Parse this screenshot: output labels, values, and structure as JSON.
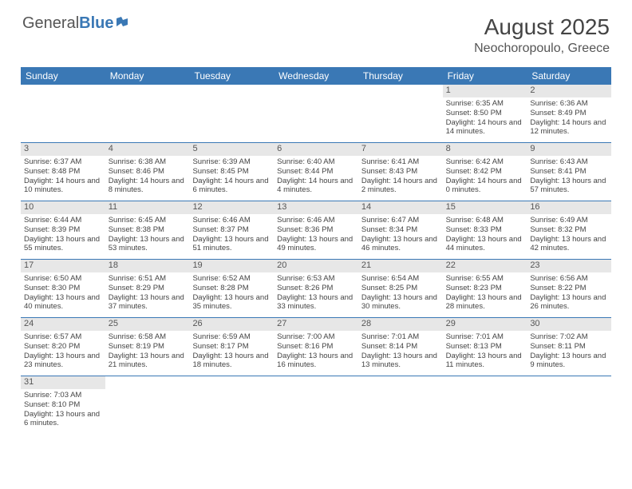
{
  "logo": {
    "general": "General",
    "blue": "Blue"
  },
  "title": "August 2025",
  "location": "Neochoropoulo, Greece",
  "colors": {
    "header_bg": "#3a78b5",
    "header_text": "#ffffff",
    "daynum_bg": "#e7e7e7",
    "text": "#444444",
    "border": "#3a78b5",
    "page_bg": "#ffffff"
  },
  "dayNames": [
    "Sunday",
    "Monday",
    "Tuesday",
    "Wednesday",
    "Thursday",
    "Friday",
    "Saturday"
  ],
  "weeks": [
    [
      {
        "n": "",
        "sr": "",
        "ss": "",
        "dl": ""
      },
      {
        "n": "",
        "sr": "",
        "ss": "",
        "dl": ""
      },
      {
        "n": "",
        "sr": "",
        "ss": "",
        "dl": ""
      },
      {
        "n": "",
        "sr": "",
        "ss": "",
        "dl": ""
      },
      {
        "n": "",
        "sr": "",
        "ss": "",
        "dl": ""
      },
      {
        "n": "1",
        "sr": "Sunrise: 6:35 AM",
        "ss": "Sunset: 8:50 PM",
        "dl": "Daylight: 14 hours and 14 minutes."
      },
      {
        "n": "2",
        "sr": "Sunrise: 6:36 AM",
        "ss": "Sunset: 8:49 PM",
        "dl": "Daylight: 14 hours and 12 minutes."
      }
    ],
    [
      {
        "n": "3",
        "sr": "Sunrise: 6:37 AM",
        "ss": "Sunset: 8:48 PM",
        "dl": "Daylight: 14 hours and 10 minutes."
      },
      {
        "n": "4",
        "sr": "Sunrise: 6:38 AM",
        "ss": "Sunset: 8:46 PM",
        "dl": "Daylight: 14 hours and 8 minutes."
      },
      {
        "n": "5",
        "sr": "Sunrise: 6:39 AM",
        "ss": "Sunset: 8:45 PM",
        "dl": "Daylight: 14 hours and 6 minutes."
      },
      {
        "n": "6",
        "sr": "Sunrise: 6:40 AM",
        "ss": "Sunset: 8:44 PM",
        "dl": "Daylight: 14 hours and 4 minutes."
      },
      {
        "n": "7",
        "sr": "Sunrise: 6:41 AM",
        "ss": "Sunset: 8:43 PM",
        "dl": "Daylight: 14 hours and 2 minutes."
      },
      {
        "n": "8",
        "sr": "Sunrise: 6:42 AM",
        "ss": "Sunset: 8:42 PM",
        "dl": "Daylight: 14 hours and 0 minutes."
      },
      {
        "n": "9",
        "sr": "Sunrise: 6:43 AM",
        "ss": "Sunset: 8:41 PM",
        "dl": "Daylight: 13 hours and 57 minutes."
      }
    ],
    [
      {
        "n": "10",
        "sr": "Sunrise: 6:44 AM",
        "ss": "Sunset: 8:39 PM",
        "dl": "Daylight: 13 hours and 55 minutes."
      },
      {
        "n": "11",
        "sr": "Sunrise: 6:45 AM",
        "ss": "Sunset: 8:38 PM",
        "dl": "Daylight: 13 hours and 53 minutes."
      },
      {
        "n": "12",
        "sr": "Sunrise: 6:46 AM",
        "ss": "Sunset: 8:37 PM",
        "dl": "Daylight: 13 hours and 51 minutes."
      },
      {
        "n": "13",
        "sr": "Sunrise: 6:46 AM",
        "ss": "Sunset: 8:36 PM",
        "dl": "Daylight: 13 hours and 49 minutes."
      },
      {
        "n": "14",
        "sr": "Sunrise: 6:47 AM",
        "ss": "Sunset: 8:34 PM",
        "dl": "Daylight: 13 hours and 46 minutes."
      },
      {
        "n": "15",
        "sr": "Sunrise: 6:48 AM",
        "ss": "Sunset: 8:33 PM",
        "dl": "Daylight: 13 hours and 44 minutes."
      },
      {
        "n": "16",
        "sr": "Sunrise: 6:49 AM",
        "ss": "Sunset: 8:32 PM",
        "dl": "Daylight: 13 hours and 42 minutes."
      }
    ],
    [
      {
        "n": "17",
        "sr": "Sunrise: 6:50 AM",
        "ss": "Sunset: 8:30 PM",
        "dl": "Daylight: 13 hours and 40 minutes."
      },
      {
        "n": "18",
        "sr": "Sunrise: 6:51 AM",
        "ss": "Sunset: 8:29 PM",
        "dl": "Daylight: 13 hours and 37 minutes."
      },
      {
        "n": "19",
        "sr": "Sunrise: 6:52 AM",
        "ss": "Sunset: 8:28 PM",
        "dl": "Daylight: 13 hours and 35 minutes."
      },
      {
        "n": "20",
        "sr": "Sunrise: 6:53 AM",
        "ss": "Sunset: 8:26 PM",
        "dl": "Daylight: 13 hours and 33 minutes."
      },
      {
        "n": "21",
        "sr": "Sunrise: 6:54 AM",
        "ss": "Sunset: 8:25 PM",
        "dl": "Daylight: 13 hours and 30 minutes."
      },
      {
        "n": "22",
        "sr": "Sunrise: 6:55 AM",
        "ss": "Sunset: 8:23 PM",
        "dl": "Daylight: 13 hours and 28 minutes."
      },
      {
        "n": "23",
        "sr": "Sunrise: 6:56 AM",
        "ss": "Sunset: 8:22 PM",
        "dl": "Daylight: 13 hours and 26 minutes."
      }
    ],
    [
      {
        "n": "24",
        "sr": "Sunrise: 6:57 AM",
        "ss": "Sunset: 8:20 PM",
        "dl": "Daylight: 13 hours and 23 minutes."
      },
      {
        "n": "25",
        "sr": "Sunrise: 6:58 AM",
        "ss": "Sunset: 8:19 PM",
        "dl": "Daylight: 13 hours and 21 minutes."
      },
      {
        "n": "26",
        "sr": "Sunrise: 6:59 AM",
        "ss": "Sunset: 8:17 PM",
        "dl": "Daylight: 13 hours and 18 minutes."
      },
      {
        "n": "27",
        "sr": "Sunrise: 7:00 AM",
        "ss": "Sunset: 8:16 PM",
        "dl": "Daylight: 13 hours and 16 minutes."
      },
      {
        "n": "28",
        "sr": "Sunrise: 7:01 AM",
        "ss": "Sunset: 8:14 PM",
        "dl": "Daylight: 13 hours and 13 minutes."
      },
      {
        "n": "29",
        "sr": "Sunrise: 7:01 AM",
        "ss": "Sunset: 8:13 PM",
        "dl": "Daylight: 13 hours and 11 minutes."
      },
      {
        "n": "30",
        "sr": "Sunrise: 7:02 AM",
        "ss": "Sunset: 8:11 PM",
        "dl": "Daylight: 13 hours and 9 minutes."
      }
    ],
    [
      {
        "n": "31",
        "sr": "Sunrise: 7:03 AM",
        "ss": "Sunset: 8:10 PM",
        "dl": "Daylight: 13 hours and 6 minutes."
      },
      {
        "n": "",
        "sr": "",
        "ss": "",
        "dl": ""
      },
      {
        "n": "",
        "sr": "",
        "ss": "",
        "dl": ""
      },
      {
        "n": "",
        "sr": "",
        "ss": "",
        "dl": ""
      },
      {
        "n": "",
        "sr": "",
        "ss": "",
        "dl": ""
      },
      {
        "n": "",
        "sr": "",
        "ss": "",
        "dl": ""
      },
      {
        "n": "",
        "sr": "",
        "ss": "",
        "dl": ""
      }
    ]
  ]
}
